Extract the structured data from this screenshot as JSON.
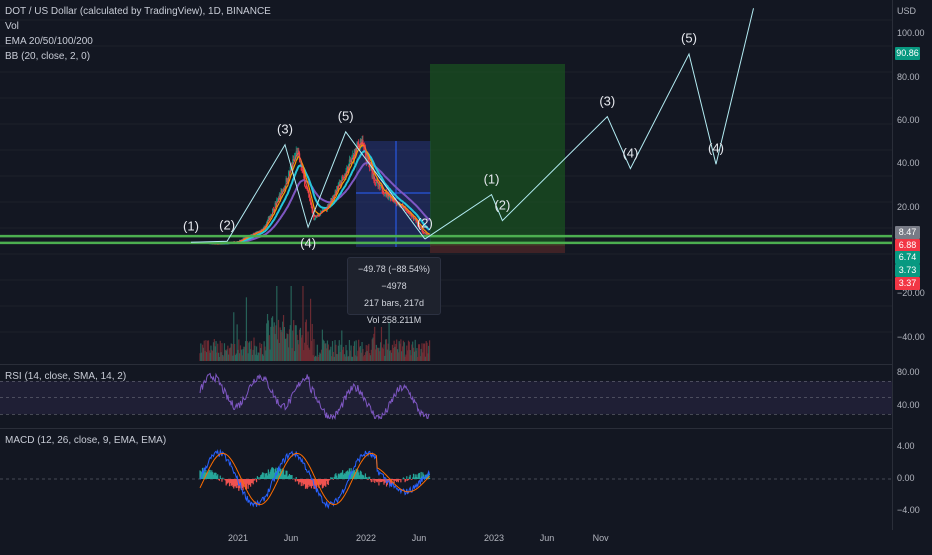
{
  "header": {
    "title": "DOT / US Dollar (calculated by TradingView), 1D, BINANCE",
    "vol": "Vol",
    "ema": "EMA 20/50/100/200",
    "bb": "BB (20, close, 2, 0)",
    "currency": "USD"
  },
  "main_axis": {
    "ticks": [
      {
        "label": "100.00",
        "value": 100
      },
      {
        "label": "80.00",
        "value": 80
      },
      {
        "label": "60.00",
        "value": 60
      },
      {
        "label": "40.00",
        "value": 40
      },
      {
        "label": "20.00",
        "value": 20
      },
      {
        "label": "−20.00",
        "value": -20
      },
      {
        "label": "−40.00",
        "value": -40
      }
    ],
    "price_tags": [
      {
        "label": "90.86",
        "value": 90.86,
        "color": "#089981"
      },
      {
        "label": "8.47",
        "value": 8.47,
        "color": "#787b86"
      },
      {
        "label": "6.88",
        "value": 6.88,
        "color": "#f23645"
      },
      {
        "label": "6.74",
        "value": 6.74,
        "color": "#089981"
      },
      {
        "label": "3.73",
        "value": 3.73,
        "color": "#089981"
      },
      {
        "label": "3.37",
        "value": 3.37,
        "color": "#f23645"
      }
    ]
  },
  "rsi": {
    "label": "RSI (14, close, SMA, 14, 2)",
    "ticks": [
      {
        "label": "80.00",
        "value": 80
      },
      {
        "label": "40.00",
        "value": 40
      }
    ]
  },
  "macd": {
    "label": "MACD (12, 26, close, 9, EMA, EMA)",
    "ticks": [
      {
        "label": "4.00",
        "value": 4
      },
      {
        "label": "0.00",
        "value": 0
      },
      {
        "label": "−4.00",
        "value": -4
      }
    ]
  },
  "x_axis": {
    "ticks": [
      {
        "label": "2021",
        "date": "2021-01-01"
      },
      {
        "label": "Jun",
        "date": "2021-06-01"
      },
      {
        "label": "2022",
        "date": "2022-01-01"
      },
      {
        "label": "Jun",
        "date": "2022-06-01"
      },
      {
        "label": "2023",
        "date": "2023-01-01"
      },
      {
        "label": "Jun",
        "date": "2023-06-01"
      },
      {
        "label": "Nov",
        "date": "2023-11-01"
      }
    ]
  },
  "tooltip": {
    "line1": "−49.78 (−88.54%) −4978",
    "line2": "217 bars, 217d",
    "line3": "Vol 258.211M"
  },
  "colors": {
    "background": "#131722",
    "candle_up": "#089981",
    "candle_down": "#f23645",
    "support_line": "#4caf50",
    "projection_line": "#b2ebf2",
    "rsi": "#7e57c2",
    "macd": "#2962ff",
    "signal": "#ff6d00"
  },
  "chart_data": {
    "type": "line",
    "symbol": "DOT / US Dollar (calculated by TradingView), 1D, BINANCE",
    "ylabel": "USD",
    "ylim": [
      -45,
      107
    ],
    "support_levels": [
      6.88,
      3.73
    ],
    "elliott_wave_history": {
      "x": [
        "2020-08-20",
        "2020-12-01",
        "2021-05-15",
        "2021-07-20",
        "2021-11-04",
        "2022-06-18"
      ],
      "y": [
        4.0,
        4.5,
        49.0,
        11.0,
        55.0,
        5.5
      ],
      "labels": [
        "(1)",
        "(2)",
        "(3)",
        "(4)",
        "(5)",
        ""
      ]
    },
    "elliott_wave_projection": {
      "x": [
        "2022-06-18",
        "2022-12-25",
        "2023-01-25",
        "2023-11-20",
        "2024-01-25",
        "2024-07-10",
        "2024-09-25",
        "2025-01-10"
      ],
      "y": [
        5.5,
        26.0,
        14.0,
        62.0,
        38.0,
        90.86,
        40.0,
        112.0
      ],
      "labels": [
        "(2)",
        "(1)",
        "(2)",
        "(3)",
        "(4)",
        "(5)",
        "(4)",
        ""
      ]
    },
    "measurement": {
      "change": "−49.78 (−88.54%)",
      "bars": 217,
      "volume": "258.211M"
    }
  }
}
